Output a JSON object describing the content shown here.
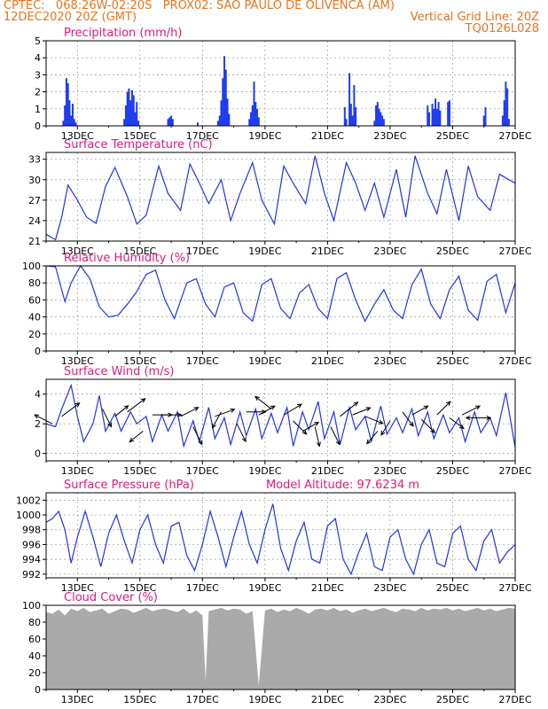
{
  "header": {
    "line1_left": "CPTEC:   068:26W-02:20S   PROX02: SAO PAULO DE OLIVENCA (AM)",
    "line2_left": "12DEC2020 20Z (GMT)",
    "line2_right": "Vertical Grid Line: 20Z",
    "line3_right": "TQ0126L028"
  },
  "colors": {
    "header": "#e8731c",
    "title": "#e0197d",
    "line": "#2233ee",
    "bar": "#1f3cf0",
    "cloud": "#aaaaaa",
    "grid": "#999999"
  },
  "chart_data": [
    {
      "id": "precip",
      "type": "bar",
      "title": "Precipitation  (mm/h)",
      "xlabel": "",
      "ylabel": "",
      "xlim": [
        0,
        15
      ],
      "ylim": [
        0,
        5
      ],
      "yticks": [
        0,
        1,
        2,
        3,
        4,
        5
      ],
      "xtick_labels": [
        "13DEC",
        "15DEC",
        "17DEC",
        "19DEC",
        "21DEC",
        "23DEC",
        "25DEC",
        "27DEC"
      ],
      "xtick_days": [
        1,
        3,
        5,
        7,
        9,
        11,
        13,
        15
      ],
      "grid": true,
      "bars": [
        [
          0.55,
          0.3
        ],
        [
          0.6,
          1.2
        ],
        [
          0.65,
          2.8
        ],
        [
          0.7,
          2.5
        ],
        [
          0.75,
          1.5
        ],
        [
          0.8,
          0.6
        ],
        [
          0.85,
          1.3
        ],
        [
          0.9,
          0.4
        ],
        [
          0.95,
          0.2
        ],
        [
          2.5,
          0.4
        ],
        [
          2.55,
          1.2
        ],
        [
          2.6,
          2.0
        ],
        [
          2.65,
          2.2
        ],
        [
          2.7,
          1.5
        ],
        [
          2.75,
          2.1
        ],
        [
          2.8,
          1.8
        ],
        [
          2.85,
          0.8
        ],
        [
          2.9,
          1.4
        ],
        [
          2.95,
          0.3
        ],
        [
          3.9,
          0.4
        ],
        [
          3.95,
          0.5
        ],
        [
          4.0,
          0.6
        ],
        [
          4.05,
          0.4
        ],
        [
          4.85,
          0.2
        ],
        [
          5.5,
          0.3
        ],
        [
          5.55,
          0.6
        ],
        [
          5.6,
          1.5
        ],
        [
          5.65,
          2.8
        ],
        [
          5.7,
          4.1
        ],
        [
          5.75,
          3.3
        ],
        [
          5.8,
          1.6
        ],
        [
          5.85,
          0.7
        ],
        [
          6.5,
          0.4
        ],
        [
          6.55,
          0.8
        ],
        [
          6.6,
          1.2
        ],
        [
          6.65,
          2.6
        ],
        [
          6.7,
          1.4
        ],
        [
          6.75,
          1.0
        ],
        [
          6.8,
          0.5
        ],
        [
          9.55,
          1.1
        ],
        [
          9.6,
          0.4
        ],
        [
          9.7,
          3.1
        ],
        [
          9.75,
          1.3
        ],
        [
          9.8,
          0.6
        ],
        [
          9.85,
          2.4
        ],
        [
          9.9,
          1.1
        ],
        [
          10.5,
          0.3
        ],
        [
          10.55,
          1.2
        ],
        [
          10.6,
          1.4
        ],
        [
          10.65,
          1.0
        ],
        [
          10.7,
          0.8
        ],
        [
          10.75,
          0.6
        ],
        [
          10.8,
          0.4
        ],
        [
          12.2,
          1.2
        ],
        [
          12.25,
          0.8
        ],
        [
          12.35,
          1.3
        ],
        [
          12.4,
          1.0
        ],
        [
          12.45,
          1.6
        ],
        [
          12.5,
          1.0
        ],
        [
          12.55,
          1.4
        ],
        [
          12.6,
          0.9
        ],
        [
          12.85,
          1.4
        ],
        [
          12.9,
          1.5
        ],
        [
          14.0,
          0.6
        ],
        [
          14.05,
          1.1
        ],
        [
          14.6,
          0.6
        ],
        [
          14.65,
          1.5
        ],
        [
          14.7,
          2.6
        ],
        [
          14.75,
          2.2
        ],
        [
          14.8,
          0.4
        ]
      ]
    },
    {
      "id": "temp",
      "type": "line",
      "title": "Surface Temperature (nC)",
      "xlabel": "",
      "ylabel": "",
      "xlim": [
        0,
        15
      ],
      "ylim": [
        21,
        34
      ],
      "yticks": [
        21,
        24,
        27,
        30,
        33
      ],
      "xtick_labels": [
        "13DEC",
        "15DEC",
        "17DEC",
        "19DEC",
        "21DEC",
        "23DEC",
        "25DEC",
        "27DEC"
      ],
      "xtick_days": [
        1,
        3,
        5,
        7,
        9,
        11,
        13,
        15
      ],
      "grid": true,
      "x": [
        0,
        0.3,
        0.5,
        0.7,
        1.0,
        1.3,
        1.6,
        1.9,
        2.2,
        2.6,
        2.9,
        3.2,
        3.6,
        3.9,
        4.3,
        4.6,
        4.9,
        5.2,
        5.6,
        5.9,
        6.2,
        6.6,
        6.9,
        7.3,
        7.6,
        7.9,
        8.3,
        8.6,
        8.9,
        9.2,
        9.6,
        9.9,
        10.2,
        10.5,
        10.8,
        11.2,
        11.5,
        11.8,
        12.2,
        12.5,
        12.8,
        13.2,
        13.5,
        13.8,
        14.2,
        14.5,
        14.8,
        15.0
      ],
      "values": [
        22.0,
        21.2,
        24.5,
        29.2,
        27.0,
        24.5,
        23.6,
        29.0,
        31.8,
        27.5,
        23.5,
        24.8,
        32.0,
        28.0,
        25.5,
        32.3,
        29.5,
        26.5,
        30.0,
        24.0,
        28.0,
        32.5,
        27.0,
        23.5,
        32.0,
        29.5,
        26.5,
        33.5,
        28.0,
        24.0,
        32.5,
        29.5,
        25.5,
        29.5,
        24.5,
        31.5,
        24.5,
        33.5,
        28.0,
        25.0,
        31.5,
        24.0,
        32.0,
        27.5,
        25.5,
        30.8,
        30.0,
        29.5
      ]
    },
    {
      "id": "rh",
      "type": "line",
      "title": "Relative Humidity (%)",
      "xlabel": "",
      "ylabel": "",
      "xlim": [
        0,
        15
      ],
      "ylim": [
        0,
        100
      ],
      "yticks": [
        0,
        20,
        40,
        60,
        80,
        100
      ],
      "xtick_labels": [
        "13DEC",
        "15DEC",
        "17DEC",
        "19DEC",
        "21DEC",
        "23DEC",
        "25DEC",
        "27DEC"
      ],
      "xtick_days": [
        1,
        3,
        5,
        7,
        9,
        11,
        13,
        15
      ],
      "grid": true,
      "x": [
        0,
        0.3,
        0.6,
        0.8,
        1.1,
        1.4,
        1.7,
        2.0,
        2.3,
        2.6,
        2.9,
        3.2,
        3.5,
        3.8,
        4.1,
        4.5,
        4.8,
        5.1,
        5.4,
        5.7,
        6.0,
        6.3,
        6.6,
        6.9,
        7.2,
        7.5,
        7.8,
        8.1,
        8.4,
        8.7,
        9.0,
        9.3,
        9.6,
        9.9,
        10.2,
        10.5,
        10.8,
        11.1,
        11.4,
        11.7,
        12.0,
        12.3,
        12.6,
        12.9,
        13.2,
        13.5,
        13.8,
        14.1,
        14.4,
        14.7,
        15.0
      ],
      "values": [
        100,
        99,
        58,
        80,
        100,
        85,
        52,
        40,
        42,
        55,
        70,
        90,
        95,
        60,
        38,
        80,
        85,
        55,
        40,
        75,
        80,
        45,
        35,
        78,
        85,
        50,
        38,
        68,
        78,
        50,
        38,
        85,
        92,
        60,
        35,
        55,
        72,
        48,
        38,
        78,
        96,
        55,
        38,
        72,
        88,
        48,
        36,
        82,
        90,
        45,
        80
      ]
    },
    {
      "id": "wind",
      "type": "line",
      "title": "Surface Wind (m/s)",
      "xlabel": "",
      "ylabel": "",
      "xlim": [
        0,
        15
      ],
      "ylim": [
        -0.5,
        5
      ],
      "yticks": [
        0,
        2,
        4
      ],
      "xtick_labels": [
        "13DEC",
        "15DEC",
        "17DEC",
        "19DEC",
        "21DEC",
        "23DEC",
        "25DEC",
        "27DEC"
      ],
      "xtick_days": [
        1,
        3,
        5,
        7,
        9,
        11,
        13,
        15
      ],
      "grid": true,
      "x": [
        0,
        0.3,
        0.5,
        0.8,
        1.0,
        1.2,
        1.5,
        1.7,
        1.9,
        2.2,
        2.4,
        2.7,
        2.9,
        3.2,
        3.4,
        3.7,
        3.9,
        4.2,
        4.4,
        4.7,
        4.9,
        5.2,
        5.4,
        5.7,
        5.9,
        6.2,
        6.4,
        6.7,
        6.9,
        7.2,
        7.4,
        7.7,
        7.9,
        8.2,
        8.4,
        8.7,
        8.9,
        9.2,
        9.4,
        9.7,
        9.9,
        10.2,
        10.4,
        10.7,
        10.9,
        11.2,
        11.4,
        11.7,
        11.9,
        12.2,
        12.4,
        12.7,
        12.9,
        13.2,
        13.4,
        13.7,
        13.9,
        14.2,
        14.4,
        14.7,
        15.0
      ],
      "values": [
        2.0,
        1.8,
        3.0,
        4.6,
        2.5,
        0.8,
        2.0,
        3.9,
        1.5,
        2.7,
        1.5,
        2.8,
        2.0,
        2.5,
        0.8,
        2.6,
        1.5,
        2.8,
        0.5,
        2.2,
        0.8,
        3.1,
        1.0,
        2.4,
        0.6,
        2.8,
        1.2,
        3.0,
        1.0,
        2.7,
        1.4,
        3.1,
        0.5,
        2.8,
        1.6,
        3.5,
        1.0,
        2.8,
        0.6,
        3.1,
        1.6,
        2.5,
        0.8,
        3.2,
        1.3,
        2.4,
        1.4,
        3.0,
        1.2,
        2.8,
        1.0,
        2.6,
        1.4,
        2.4,
        0.8,
        2.8,
        1.4,
        2.4,
        1.2,
        4.1,
        0.4
      ],
      "arrows": [
        [
          0.2,
          2.0,
          -20,
          -10
        ],
        [
          0.5,
          2.5,
          20,
          -15
        ],
        [
          1.8,
          3.0,
          10,
          20
        ],
        [
          2.2,
          2.5,
          15,
          -12
        ],
        [
          2.6,
          2.8,
          20,
          -15
        ],
        [
          3.1,
          1.5,
          -15,
          12
        ],
        [
          3.4,
          2.6,
          22,
          0
        ],
        [
          3.7,
          2.6,
          22,
          0
        ],
        [
          4.3,
          2.5,
          20,
          -10
        ],
        [
          4.7,
          1.8,
          10,
          20
        ],
        [
          5.4,
          2.5,
          22,
          -8
        ],
        [
          5.6,
          2.8,
          -10,
          18
        ],
        [
          6.1,
          2.0,
          10,
          20
        ],
        [
          6.4,
          2.8,
          22,
          0
        ],
        [
          6.8,
          2.6,
          18,
          -10
        ],
        [
          7.2,
          3.0,
          -18,
          -14
        ],
        [
          7.6,
          2.6,
          20,
          -12
        ],
        [
          7.9,
          2.2,
          15,
          15
        ],
        [
          8.2,
          1.5,
          18,
          -10
        ],
        [
          8.6,
          1.8,
          5,
          22
        ],
        [
          9.1,
          1.8,
          10,
          20
        ],
        [
          9.4,
          2.5,
          20,
          -16
        ],
        [
          9.8,
          2.6,
          20,
          -8
        ],
        [
          10.2,
          2.5,
          20,
          8
        ],
        [
          10.6,
          1.5,
          -12,
          14
        ],
        [
          11.0,
          2.2,
          -10,
          16
        ],
        [
          11.4,
          2.8,
          12,
          16
        ],
        [
          11.7,
          2.6,
          18,
          -10
        ],
        [
          12.0,
          2.3,
          15,
          15
        ],
        [
          12.5,
          2.6,
          15,
          -15
        ],
        [
          12.9,
          2.4,
          16,
          12
        ],
        [
          13.3,
          2.6,
          20,
          -10
        ],
        [
          13.7,
          2.4,
          18,
          0
        ],
        [
          14.0,
          2.4,
          -20,
          0
        ]
      ]
    },
    {
      "id": "pres",
      "type": "line",
      "title": "Surface Pressure (hPa)",
      "annotation": "Model Altitude: 97.6234 m",
      "xlabel": "",
      "ylabel": "",
      "xlim": [
        0,
        15
      ],
      "ylim": [
        991.5,
        1003
      ],
      "yticks": [
        992,
        994,
        996,
        998,
        1000,
        1002
      ],
      "xtick_labels": [
        "13DEC",
        "15DEC",
        "17DEC",
        "19DEC",
        "21DEC",
        "23DEC",
        "25DEC",
        "27DEC"
      ],
      "xtick_days": [
        1,
        3,
        5,
        7,
        9,
        11,
        13,
        15
      ],
      "grid": true,
      "x": [
        0,
        0.2,
        0.4,
        0.6,
        0.8,
        1.0,
        1.25,
        1.5,
        1.75,
        2.0,
        2.25,
        2.5,
        2.75,
        3.0,
        3.25,
        3.5,
        3.75,
        4.0,
        4.25,
        4.5,
        4.75,
        5.0,
        5.25,
        5.5,
        5.75,
        6.0,
        6.25,
        6.5,
        6.75,
        7.0,
        7.25,
        7.5,
        7.75,
        8.0,
        8.25,
        8.5,
        8.75,
        9.0,
        9.25,
        9.5,
        9.75,
        10.0,
        10.25,
        10.5,
        10.75,
        11.0,
        11.25,
        11.5,
        11.75,
        12.0,
        12.25,
        12.5,
        12.75,
        13.0,
        13.25,
        13.5,
        13.75,
        14.0,
        14.25,
        14.5,
        14.75,
        15.0
      ],
      "values": [
        999.0,
        999.5,
        1000.5,
        998.0,
        993.5,
        997.0,
        1000.5,
        997.0,
        993.0,
        997.5,
        1000.0,
        996.5,
        993.5,
        998.0,
        1000.0,
        996.0,
        993.5,
        998.5,
        999.0,
        994.5,
        992.5,
        996.0,
        1000.5,
        997.0,
        993.0,
        997.0,
        1000.5,
        996.0,
        993.5,
        998.0,
        1001.5,
        995.5,
        992.5,
        996.5,
        999.0,
        994.0,
        993.5,
        998.5,
        999.5,
        994.0,
        992.0,
        995.0,
        997.5,
        993.0,
        992.5,
        997.0,
        998.0,
        994.0,
        992.0,
        996.0,
        998.0,
        993.5,
        993.0,
        997.5,
        998.5,
        994.0,
        992.5,
        996.5,
        998.0,
        993.5,
        995.0,
        996.0
      ]
    },
    {
      "id": "cloud",
      "type": "area",
      "title": "Cloud Cover (%)",
      "xlabel": "",
      "ylabel": "",
      "xlim": [
        0,
        15
      ],
      "ylim": [
        0,
        100
      ],
      "yticks": [
        0,
        20,
        40,
        60,
        80,
        100
      ],
      "xtick_labels": [
        "13DEC",
        "15DEC",
        "17DEC",
        "19DEC",
        "21DEC",
        "23DEC",
        "25DEC",
        "27DEC"
      ],
      "xtick_days": [
        1,
        3,
        5,
        7,
        9,
        11,
        13,
        15
      ],
      "grid": false,
      "x": [
        0,
        0.2,
        0.4,
        0.6,
        0.8,
        1.0,
        1.2,
        1.4,
        1.6,
        1.8,
        2.0,
        2.2,
        2.4,
        2.6,
        2.8,
        3.0,
        3.2,
        3.4,
        3.6,
        3.8,
        4.0,
        4.2,
        4.4,
        4.6,
        4.8,
        5.0,
        5.1,
        5.2,
        5.4,
        5.6,
        5.8,
        6.0,
        6.2,
        6.4,
        6.6,
        6.8,
        7.0,
        7.2,
        7.4,
        7.6,
        7.8,
        8.0,
        8.2,
        8.4,
        8.6,
        8.8,
        9.0,
        9.2,
        9.4,
        9.6,
        9.8,
        10.0,
        10.2,
        10.4,
        10.6,
        10.8,
        11.0,
        11.2,
        11.4,
        11.6,
        11.8,
        12.0,
        12.2,
        12.4,
        12.6,
        12.8,
        13.0,
        13.2,
        13.4,
        13.6,
        13.8,
        14.0,
        14.2,
        14.4,
        14.6,
        14.8,
        15.0
      ],
      "values": [
        92,
        90,
        95,
        88,
        96,
        93,
        97,
        92,
        94,
        96,
        90,
        93,
        96,
        95,
        91,
        94,
        97,
        93,
        95,
        96,
        94,
        92,
        96,
        90,
        94,
        88,
        10,
        93,
        95,
        97,
        94,
        96,
        95,
        90,
        93,
        5,
        94,
        96,
        92,
        95,
        93,
        97,
        94,
        90,
        95,
        96,
        94,
        97,
        93,
        95,
        91,
        94,
        96,
        93,
        95,
        97,
        94,
        92,
        96,
        95,
        93,
        97,
        94,
        96,
        95,
        97,
        94,
        96,
        93,
        95,
        97,
        94,
        96,
        93,
        95,
        97,
        96
      ]
    }
  ]
}
